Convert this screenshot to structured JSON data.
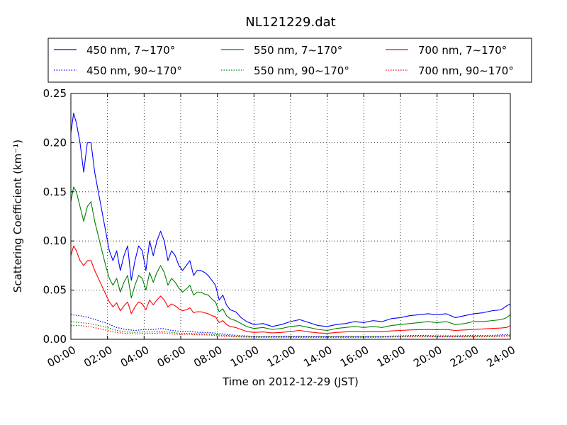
{
  "chart_data": {
    "type": "line",
    "title": "NL121229.dat",
    "xlabel": "Time on 2012-12-29 (JST)",
    "ylabel": "Scattering Coefficient (km⁻¹)",
    "xlim": [
      "00:00",
      "24:00"
    ],
    "ylim": [
      0,
      0.25
    ],
    "x_ticks": [
      "00:00",
      "02:00",
      "04:00",
      "06:00",
      "08:00",
      "10:00",
      "12:00",
      "14:00",
      "16:00",
      "18:00",
      "20:00",
      "22:00",
      "24:00"
    ],
    "y_ticks": [
      "0.00",
      "0.05",
      "0.10",
      "0.15",
      "0.20",
      "0.25"
    ],
    "grid": true,
    "legend_position": "top, above plot, 3 columns",
    "series": [
      {
        "name": "450 nm, 7∼170°",
        "color": "#0000ff",
        "style": "solid",
        "x": [
          0,
          0.15,
          0.3,
          0.5,
          0.7,
          0.9,
          1.1,
          1.3,
          1.5,
          1.7,
          1.9,
          2.1,
          2.3,
          2.5,
          2.7,
          2.9,
          3.1,
          3.3,
          3.5,
          3.7,
          3.9,
          4.1,
          4.3,
          4.5,
          4.7,
          4.9,
          5.1,
          5.3,
          5.5,
          5.7,
          5.9,
          6.1,
          6.3,
          6.5,
          6.7,
          6.9,
          7.1,
          7.3,
          7.5,
          7.7,
          7.9,
          8.1,
          8.3,
          8.5,
          8.7,
          9.0,
          9.3,
          9.6,
          10.0,
          10.5,
          11.0,
          11.5,
          12.0,
          12.5,
          13.0,
          13.5,
          14.0,
          14.5,
          15.0,
          15.5,
          16.0,
          16.5,
          17.0,
          17.5,
          18.0,
          18.5,
          19.0,
          19.5,
          20.0,
          20.5,
          21.0,
          21.5,
          22.0,
          22.5,
          23.0,
          23.5,
          23.8,
          24.0
        ],
        "values": [
          0.21,
          0.23,
          0.22,
          0.2,
          0.17,
          0.2,
          0.2,
          0.17,
          0.15,
          0.13,
          0.11,
          0.09,
          0.08,
          0.09,
          0.07,
          0.085,
          0.095,
          0.06,
          0.08,
          0.095,
          0.09,
          0.07,
          0.1,
          0.085,
          0.1,
          0.11,
          0.1,
          0.08,
          0.09,
          0.085,
          0.075,
          0.07,
          0.075,
          0.08,
          0.065,
          0.07,
          0.07,
          0.068,
          0.065,
          0.06,
          0.055,
          0.04,
          0.045,
          0.035,
          0.03,
          0.028,
          0.022,
          0.018,
          0.015,
          0.016,
          0.013,
          0.015,
          0.018,
          0.02,
          0.017,
          0.014,
          0.013,
          0.015,
          0.016,
          0.018,
          0.017,
          0.019,
          0.018,
          0.021,
          0.022,
          0.024,
          0.025,
          0.026,
          0.025,
          0.026,
          0.022,
          0.024,
          0.026,
          0.027,
          0.029,
          0.03,
          0.034,
          0.036
        ]
      },
      {
        "name": "550 nm, 7∼170°",
        "color": "#008000",
        "style": "solid",
        "x": [
          0,
          0.15,
          0.3,
          0.5,
          0.7,
          0.9,
          1.1,
          1.3,
          1.5,
          1.7,
          1.9,
          2.1,
          2.3,
          2.5,
          2.7,
          2.9,
          3.1,
          3.3,
          3.5,
          3.7,
          3.9,
          4.1,
          4.3,
          4.5,
          4.7,
          4.9,
          5.1,
          5.3,
          5.5,
          5.7,
          5.9,
          6.1,
          6.3,
          6.5,
          6.7,
          6.9,
          7.1,
          7.3,
          7.5,
          7.7,
          7.9,
          8.1,
          8.3,
          8.5,
          8.7,
          9.0,
          9.3,
          9.6,
          10.0,
          10.5,
          11.0,
          11.5,
          12.0,
          12.5,
          13.0,
          13.5,
          14.0,
          14.5,
          15.0,
          15.5,
          16.0,
          16.5,
          17.0,
          17.5,
          18.0,
          18.5,
          19.0,
          19.5,
          20.0,
          20.5,
          21.0,
          21.5,
          22.0,
          22.5,
          23.0,
          23.5,
          23.8,
          24.0
        ],
        "values": [
          0.14,
          0.155,
          0.15,
          0.135,
          0.12,
          0.135,
          0.14,
          0.12,
          0.105,
          0.09,
          0.075,
          0.062,
          0.055,
          0.062,
          0.048,
          0.058,
          0.065,
          0.042,
          0.055,
          0.065,
          0.062,
          0.05,
          0.068,
          0.058,
          0.068,
          0.075,
          0.068,
          0.055,
          0.062,
          0.058,
          0.052,
          0.048,
          0.051,
          0.055,
          0.045,
          0.048,
          0.048,
          0.046,
          0.045,
          0.041,
          0.038,
          0.028,
          0.031,
          0.024,
          0.021,
          0.019,
          0.016,
          0.013,
          0.011,
          0.012,
          0.01,
          0.011,
          0.013,
          0.014,
          0.012,
          0.01,
          0.009,
          0.011,
          0.012,
          0.013,
          0.012,
          0.013,
          0.012,
          0.014,
          0.015,
          0.016,
          0.017,
          0.018,
          0.017,
          0.018,
          0.015,
          0.016,
          0.018,
          0.018,
          0.019,
          0.02,
          0.022,
          0.025
        ]
      },
      {
        "name": "700 nm, 7∼170°",
        "color": "#ff0000",
        "style": "solid",
        "x": [
          0,
          0.15,
          0.3,
          0.5,
          0.7,
          0.9,
          1.1,
          1.3,
          1.5,
          1.7,
          1.9,
          2.1,
          2.3,
          2.5,
          2.7,
          2.9,
          3.1,
          3.3,
          3.5,
          3.7,
          3.9,
          4.1,
          4.3,
          4.5,
          4.7,
          4.9,
          5.1,
          5.3,
          5.5,
          5.7,
          5.9,
          6.1,
          6.3,
          6.5,
          6.7,
          6.9,
          7.1,
          7.3,
          7.5,
          7.7,
          7.9,
          8.1,
          8.3,
          8.5,
          8.7,
          9.0,
          9.3,
          9.6,
          10.0,
          10.5,
          11.0,
          11.5,
          12.0,
          12.5,
          13.0,
          13.5,
          14.0,
          14.5,
          15.0,
          15.5,
          16.0,
          16.5,
          17.0,
          17.5,
          18.0,
          18.5,
          19.0,
          19.5,
          20.0,
          20.5,
          21.0,
          21.5,
          22.0,
          22.5,
          23.0,
          23.5,
          23.8,
          24.0
        ],
        "values": [
          0.085,
          0.095,
          0.09,
          0.08,
          0.075,
          0.08,
          0.08,
          0.07,
          0.062,
          0.054,
          0.046,
          0.038,
          0.033,
          0.037,
          0.029,
          0.034,
          0.038,
          0.026,
          0.033,
          0.038,
          0.036,
          0.03,
          0.04,
          0.035,
          0.04,
          0.044,
          0.04,
          0.033,
          0.036,
          0.034,
          0.031,
          0.029,
          0.03,
          0.032,
          0.027,
          0.028,
          0.028,
          0.027,
          0.026,
          0.024,
          0.023,
          0.017,
          0.019,
          0.015,
          0.013,
          0.012,
          0.01,
          0.008,
          0.007,
          0.0075,
          0.0065,
          0.007,
          0.008,
          0.009,
          0.0075,
          0.0065,
          0.006,
          0.007,
          0.0075,
          0.008,
          0.0075,
          0.008,
          0.0078,
          0.0085,
          0.009,
          0.0095,
          0.0098,
          0.01,
          0.0098,
          0.01,
          0.009,
          0.0095,
          0.01,
          0.0105,
          0.011,
          0.0115,
          0.012,
          0.014
        ]
      },
      {
        "name": "450 nm, 90∼170°",
        "color": "#0000ff",
        "style": "dotted",
        "x": [
          0,
          0.5,
          1.0,
          1.5,
          2.0,
          2.5,
          3.0,
          3.5,
          4.0,
          4.5,
          5.0,
          5.5,
          6.0,
          6.5,
          7.0,
          7.5,
          8.0,
          8.5,
          9.0,
          9.5,
          10.0,
          11.0,
          12.0,
          13.0,
          14.0,
          15.0,
          16.0,
          17.0,
          18.0,
          19.0,
          20.0,
          21.0,
          22.0,
          23.0,
          24.0
        ],
        "values": [
          0.025,
          0.024,
          0.022,
          0.019,
          0.016,
          0.012,
          0.01,
          0.009,
          0.01,
          0.01,
          0.011,
          0.009,
          0.008,
          0.008,
          0.007,
          0.007,
          0.006,
          0.005,
          0.004,
          0.0035,
          0.003,
          0.003,
          0.003,
          0.003,
          0.003,
          0.003,
          0.003,
          0.003,
          0.0035,
          0.004,
          0.0035,
          0.0035,
          0.004,
          0.004,
          0.005
        ]
      },
      {
        "name": "550 nm, 90∼170°",
        "color": "#008000",
        "style": "dotted",
        "x": [
          0,
          0.5,
          1.0,
          1.5,
          2.0,
          2.5,
          3.0,
          3.5,
          4.0,
          4.5,
          5.0,
          5.5,
          6.0,
          6.5,
          7.0,
          7.5,
          8.0,
          8.5,
          9.0,
          9.5,
          10.0,
          11.0,
          12.0,
          13.0,
          14.0,
          15.0,
          16.0,
          17.0,
          18.0,
          19.0,
          20.0,
          21.0,
          22.0,
          23.0,
          24.0
        ],
        "values": [
          0.018,
          0.017,
          0.016,
          0.014,
          0.012,
          0.009,
          0.0075,
          0.007,
          0.0075,
          0.0075,
          0.008,
          0.007,
          0.006,
          0.006,
          0.0055,
          0.0055,
          0.0045,
          0.004,
          0.003,
          0.0028,
          0.0025,
          0.0025,
          0.0025,
          0.0025,
          0.0025,
          0.0025,
          0.0025,
          0.0025,
          0.003,
          0.003,
          0.003,
          0.003,
          0.003,
          0.0032,
          0.004
        ]
      },
      {
        "name": "700 nm, 90∼170°",
        "color": "#ff0000",
        "style": "dotted",
        "x": [
          0,
          0.5,
          1.0,
          1.5,
          2.0,
          2.5,
          3.0,
          3.5,
          4.0,
          4.5,
          5.0,
          5.5,
          6.0,
          6.5,
          7.0,
          7.5,
          8.0,
          8.5,
          9.0,
          9.5,
          10.0,
          11.0,
          12.0,
          13.0,
          14.0,
          15.0,
          16.0,
          17.0,
          18.0,
          19.0,
          20.0,
          21.0,
          22.0,
          23.0,
          24.0
        ],
        "values": [
          0.014,
          0.014,
          0.013,
          0.011,
          0.009,
          0.007,
          0.006,
          0.0055,
          0.006,
          0.006,
          0.0065,
          0.0055,
          0.005,
          0.005,
          0.0045,
          0.0045,
          0.0035,
          0.003,
          0.0025,
          0.0022,
          0.002,
          0.002,
          0.002,
          0.002,
          0.002,
          0.002,
          0.002,
          0.002,
          0.0025,
          0.0025,
          0.0025,
          0.0025,
          0.0025,
          0.0027,
          0.0032
        ]
      }
    ]
  }
}
